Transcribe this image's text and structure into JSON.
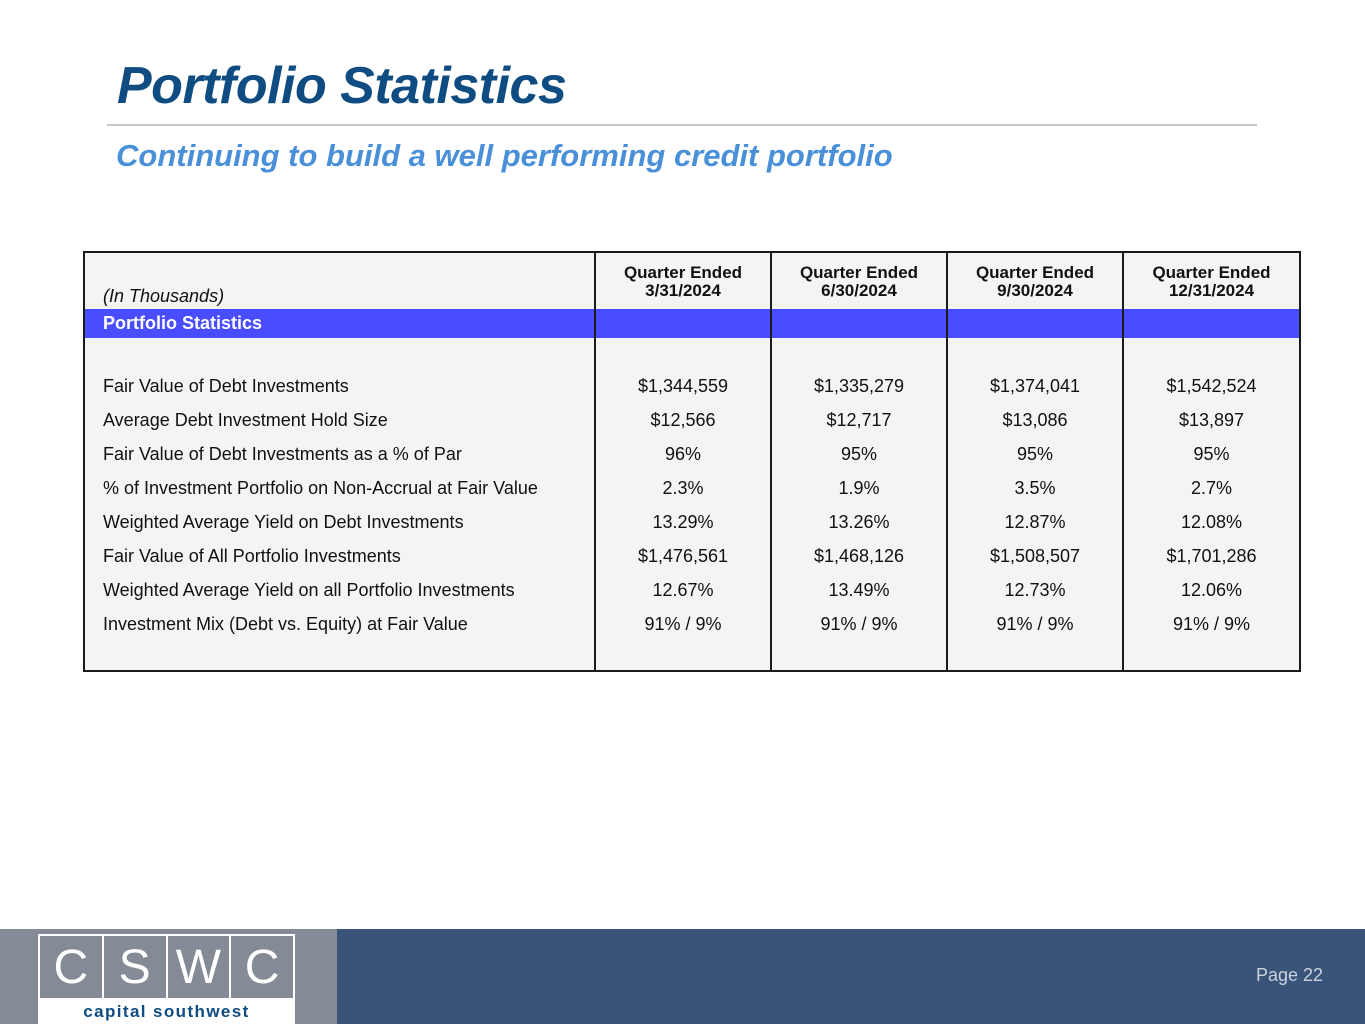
{
  "header": {
    "title": "Portfolio Statistics",
    "subtitle": "Continuing to build a well performing credit portfolio"
  },
  "table": {
    "units_label": "(In Thousands)",
    "columns": [
      {
        "line1": "Quarter Ended",
        "line2": "3/31/2024"
      },
      {
        "line1": "Quarter Ended",
        "line2": "6/30/2024"
      },
      {
        "line1": "Quarter Ended",
        "line2": "9/30/2024"
      },
      {
        "line1": "Quarter Ended",
        "line2": "12/31/2024"
      }
    ],
    "section_label": "Portfolio Statistics",
    "rows": [
      {
        "label": "Fair Value of Debt Investments",
        "values": [
          "$1,344,559",
          "$1,335,279",
          "$1,374,041",
          "$1,542,524"
        ]
      },
      {
        "label": "Average Debt Investment Hold Size",
        "values": [
          "$12,566",
          "$12,717",
          "$13,086",
          "$13,897"
        ]
      },
      {
        "label": "Fair Value of Debt Investments as a % of Par",
        "values": [
          "96%",
          "95%",
          "95%",
          "95%"
        ]
      },
      {
        "label": "% of Investment Portfolio on Non-Accrual at Fair Value",
        "values": [
          "2.3%",
          "1.9%",
          "3.5%",
          "2.7%"
        ]
      },
      {
        "label": "Weighted Average Yield on Debt Investments",
        "values": [
          "13.29%",
          "13.26%",
          "12.87%",
          "12.08%"
        ]
      },
      {
        "label": "Fair Value of All Portfolio Investments",
        "values": [
          "$1,476,561",
          "$1,468,126",
          "$1,508,507",
          "$1,701,286"
        ]
      },
      {
        "label": "Weighted Average Yield on all Portfolio Investments",
        "values": [
          "12.67%",
          "13.49%",
          "12.73%",
          "12.06%"
        ]
      },
      {
        "label": "Investment Mix (Debt vs. Equity) at Fair Value",
        "values": [
          "91% / 9%",
          "91% / 9%",
          "91% / 9%",
          "91% / 9%"
        ]
      }
    ]
  },
  "footer": {
    "logo_letters": [
      "C",
      "S",
      "W",
      "C"
    ],
    "logo_tagline": "capital southwest",
    "page_label": "Page 22"
  },
  "colors": {
    "title": "#0f4c81",
    "subtitle": "#4a90d9",
    "band": "#4a4cff",
    "footer": "#3a5378",
    "logo_panel": "#848b96"
  }
}
